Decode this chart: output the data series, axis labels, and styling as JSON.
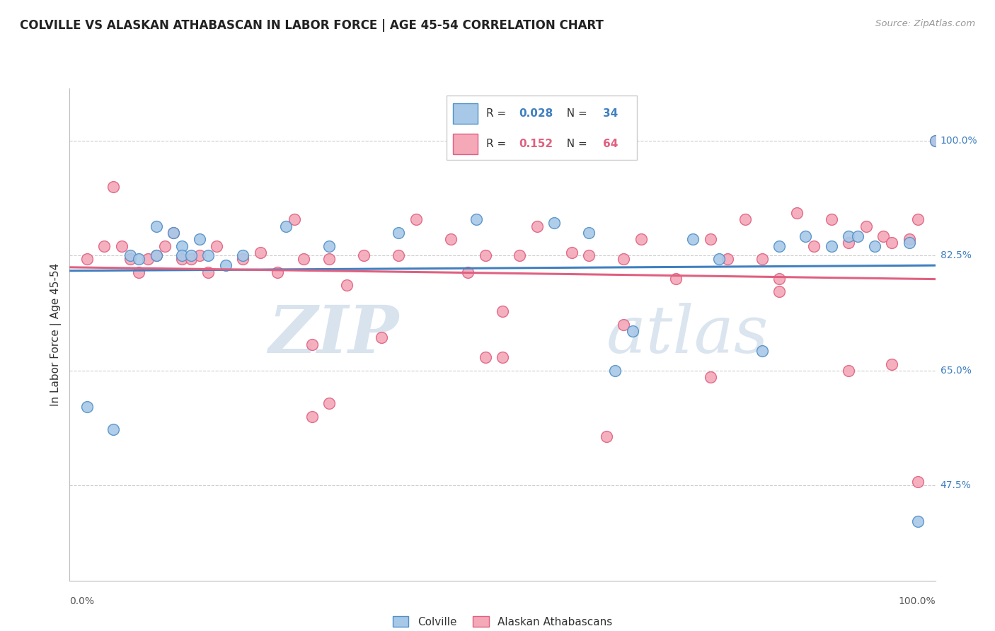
{
  "title": "COLVILLE VS ALASKAN ATHABASCAN IN LABOR FORCE | AGE 45-54 CORRELATION CHART",
  "source": "Source: ZipAtlas.com",
  "ylabel": "In Labor Force | Age 45-54",
  "ytick_labels": [
    "47.5%",
    "65.0%",
    "82.5%",
    "100.0%"
  ],
  "ytick_values": [
    0.475,
    0.65,
    0.825,
    1.0
  ],
  "xlim": [
    0.0,
    1.0
  ],
  "ylim": [
    0.33,
    1.08
  ],
  "legend_blue_r": "0.028",
  "legend_blue_n": "34",
  "legend_pink_r": "0.152",
  "legend_pink_n": "64",
  "blue_color": "#A8C8E8",
  "pink_color": "#F4A8B8",
  "blue_edge_color": "#5090C8",
  "pink_edge_color": "#E06080",
  "blue_line_color": "#4080C0",
  "pink_line_color": "#E06080",
  "watermark_zip": "ZIP",
  "watermark_atlas": "atlas",
  "blue_scatter_x": [
    0.02,
    0.05,
    0.07,
    0.08,
    0.1,
    0.1,
    0.12,
    0.13,
    0.13,
    0.14,
    0.15,
    0.16,
    0.18,
    0.2,
    0.25,
    0.3,
    0.38,
    0.47,
    0.56,
    0.6,
    0.63,
    0.65,
    0.72,
    0.75,
    0.8,
    0.82,
    0.85,
    0.88,
    0.9,
    0.91,
    0.93,
    0.97,
    0.98,
    1.0
  ],
  "blue_scatter_y": [
    0.595,
    0.56,
    0.825,
    0.82,
    0.87,
    0.825,
    0.86,
    0.84,
    0.825,
    0.825,
    0.85,
    0.825,
    0.81,
    0.825,
    0.87,
    0.84,
    0.86,
    0.88,
    0.875,
    0.86,
    0.65,
    0.71,
    0.85,
    0.82,
    0.68,
    0.84,
    0.855,
    0.84,
    0.855,
    0.855,
    0.84,
    0.845,
    0.42,
    1.0
  ],
  "pink_scatter_x": [
    0.02,
    0.04,
    0.05,
    0.06,
    0.07,
    0.08,
    0.09,
    0.1,
    0.11,
    0.12,
    0.13,
    0.14,
    0.15,
    0.16,
    0.17,
    0.2,
    0.22,
    0.24,
    0.26,
    0.27,
    0.28,
    0.3,
    0.32,
    0.34,
    0.36,
    0.38,
    0.4,
    0.44,
    0.46,
    0.48,
    0.5,
    0.52,
    0.54,
    0.58,
    0.6,
    0.64,
    0.66,
    0.7,
    0.74,
    0.76,
    0.78,
    0.8,
    0.82,
    0.84,
    0.86,
    0.88,
    0.9,
    0.92,
    0.94,
    0.95,
    0.97,
    0.98,
    1.0,
    0.3,
    0.28,
    0.48,
    0.5,
    0.64,
    0.74,
    0.82,
    0.9,
    0.95,
    0.98,
    0.62
  ],
  "pink_scatter_y": [
    0.82,
    0.84,
    0.93,
    0.84,
    0.82,
    0.8,
    0.82,
    0.825,
    0.84,
    0.86,
    0.82,
    0.82,
    0.825,
    0.8,
    0.84,
    0.82,
    0.83,
    0.8,
    0.88,
    0.82,
    0.69,
    0.82,
    0.78,
    0.825,
    0.7,
    0.825,
    0.88,
    0.85,
    0.8,
    0.825,
    0.74,
    0.825,
    0.87,
    0.83,
    0.825,
    0.82,
    0.85,
    0.79,
    0.85,
    0.82,
    0.88,
    0.82,
    0.77,
    0.89,
    0.84,
    0.88,
    0.845,
    0.87,
    0.855,
    0.845,
    0.85,
    0.88,
    1.0,
    0.6,
    0.58,
    0.67,
    0.67,
    0.72,
    0.64,
    0.79,
    0.65,
    0.66,
    0.48,
    0.55
  ]
}
